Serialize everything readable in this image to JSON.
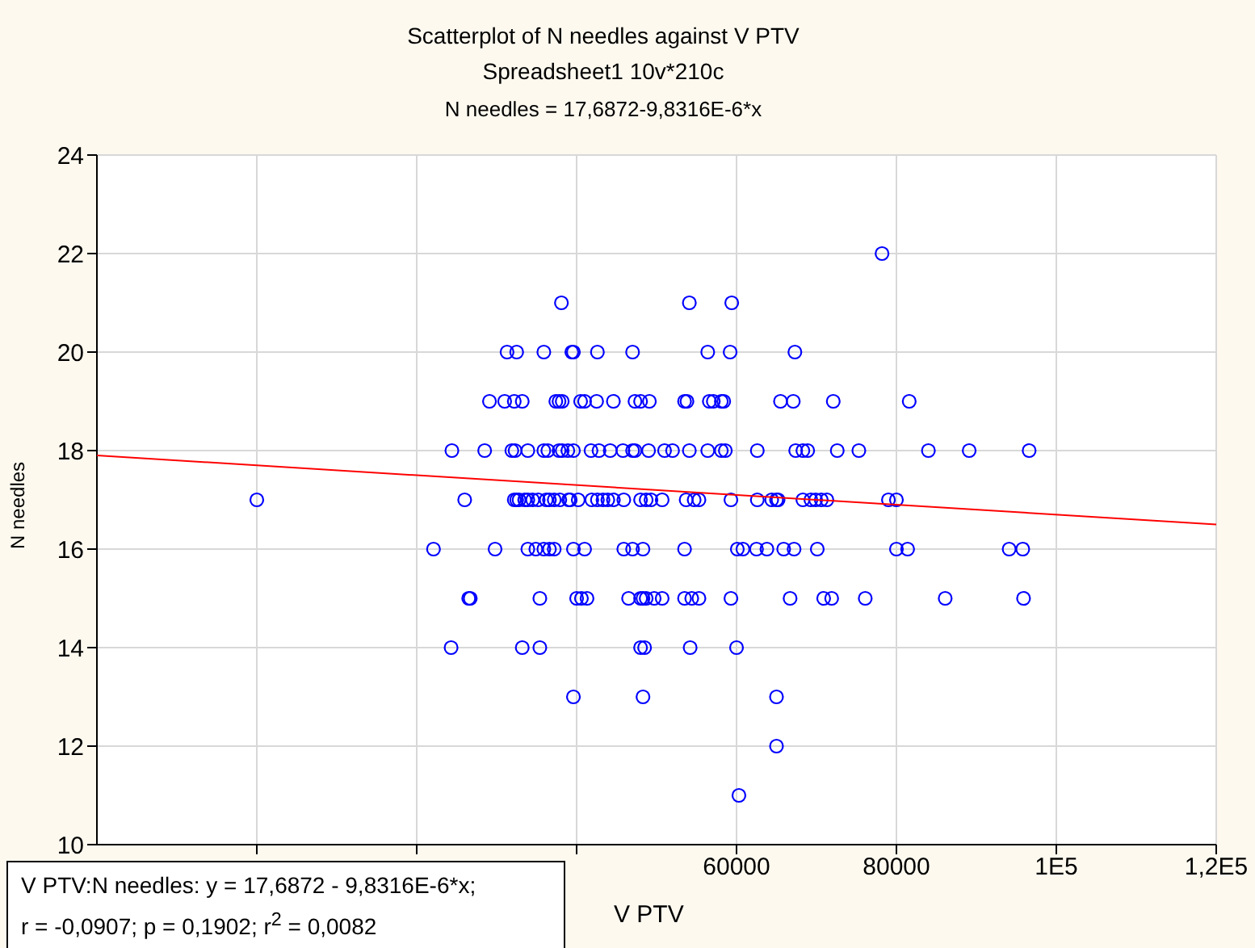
{
  "chart_data": {
    "type": "scatter",
    "title": "Scatterplot of N needles against V PTV",
    "subtitle": "Spreadsheet1 10v*210c",
    "xlabel": "V PTV",
    "ylabel": "N needles",
    "annotations": [
      "N needles = 17,6872-9,8316E-6*x",
      "V PTV:N needles:   y = 17,6872 - 9,8316E-6*x;",
      "r = -0,0907; p = 0,1902; r$^{2}$ = 0,0082"
    ],
    "xlim": [
      -20000,
      120000
    ],
    "xticks": [
      {
        "value": 0,
        "label": null
      },
      {
        "value": 20000,
        "label": null
      },
      {
        "value": 40000,
        "label": null
      },
      60000,
      80000,
      {
        "value": 100000,
        "label": "1E5"
      },
      {
        "value": 120000,
        "label": "1,2E5"
      }
    ],
    "ylim": [
      10,
      24
    ],
    "yticks": [
      10,
      12,
      14,
      16,
      18,
      20,
      22,
      24
    ],
    "grid": true,
    "series": [
      {
        "color": "#0000ff",
        "marker": "circle",
        "x": [
          38100,
          54100,
          59400,
          78200,
          31300,
          32500,
          35900,
          39400,
          39600,
          42600,
          47000,
          56400,
          59200,
          67300,
          29100,
          31000,
          32200,
          33200,
          37400,
          37800,
          38200,
          40500,
          41000,
          42500,
          44600,
          47300,
          48000,
          49100,
          53500,
          53800,
          56600,
          57100,
          58100,
          58400,
          65500,
          67100,
          72100,
          81600,
          24400,
          28500,
          31900,
          32300,
          33900,
          35900,
          36400,
          37800,
          38200,
          38900,
          39600,
          41800,
          42800,
          44200,
          45800,
          47000,
          47300,
          49000,
          51000,
          52000,
          54100,
          56400,
          58100,
          58600,
          62600,
          67400,
          68300,
          68900,
          72600,
          75300,
          84000,
          89100,
          96600,
          0,
          26000,
          32200,
          32500,
          32800,
          33500,
          33900,
          34500,
          35200,
          36200,
          36600,
          37200,
          37900,
          39000,
          39200,
          40200,
          41900,
          42600,
          43300,
          43900,
          44600,
          45900,
          48000,
          48700,
          49300,
          50700,
          53700,
          54700,
          55300,
          59300,
          62600,
          64400,
          65000,
          65200,
          68300,
          69300,
          69900,
          70600,
          71300,
          79000,
          80000,
          22100,
          29800,
          33900,
          34900,
          35900,
          36600,
          37200,
          39600,
          41000,
          45900,
          47000,
          48300,
          53500,
          60100,
          60800,
          62500,
          63800,
          65900,
          67200,
          70100,
          80000,
          81400,
          94100,
          95800,
          26500,
          26700,
          35400,
          40000,
          40600,
          41300,
          46500,
          48000,
          48300,
          48700,
          49700,
          50700,
          53500,
          54400,
          55300,
          59300,
          66700,
          70900,
          71900,
          76100,
          86100,
          95900,
          24300,
          33200,
          35400,
          48000,
          48500,
          54200,
          60000,
          39600,
          48300,
          65000,
          65000,
          60300
        ],
        "values": [
          21,
          21,
          21,
          22,
          20,
          20,
          20,
          20,
          20,
          20,
          20,
          20,
          20,
          20,
          19,
          19,
          19,
          19,
          19,
          19,
          19,
          19,
          19,
          19,
          19,
          19,
          19,
          19,
          19,
          19,
          19,
          19,
          19,
          19,
          19,
          19,
          19,
          19,
          18,
          18,
          18,
          18,
          18,
          18,
          18,
          18,
          18,
          18,
          18,
          18,
          18,
          18,
          18,
          18,
          18,
          18,
          18,
          18,
          18,
          18,
          18,
          18,
          18,
          18,
          18,
          18,
          18,
          18,
          18,
          18,
          18,
          17,
          17,
          17,
          17,
          17,
          17,
          17,
          17,
          17,
          17,
          17,
          17,
          17,
          17,
          17,
          17,
          17,
          17,
          17,
          17,
          17,
          17,
          17,
          17,
          17,
          17,
          17,
          17,
          17,
          17,
          17,
          17,
          17,
          17,
          17,
          17,
          17,
          17,
          17,
          17,
          17,
          16,
          16,
          16,
          16,
          16,
          16,
          16,
          16,
          16,
          16,
          16,
          16,
          16,
          16,
          16,
          16,
          16,
          16,
          16,
          16,
          16,
          16,
          16,
          16,
          15,
          15,
          15,
          15,
          15,
          15,
          15,
          15,
          15,
          15,
          15,
          15,
          15,
          15,
          15,
          15,
          15,
          15,
          15,
          15,
          15,
          15,
          14,
          14,
          14,
          14,
          14,
          14,
          14,
          13,
          13,
          13,
          12,
          11
        ]
      },
      {
        "type": "line",
        "marker": "none",
        "color": "#ff0000",
        "x": [
          -20000,
          120000
        ],
        "values": [
          17.9,
          16.5
        ]
      }
    ]
  }
}
